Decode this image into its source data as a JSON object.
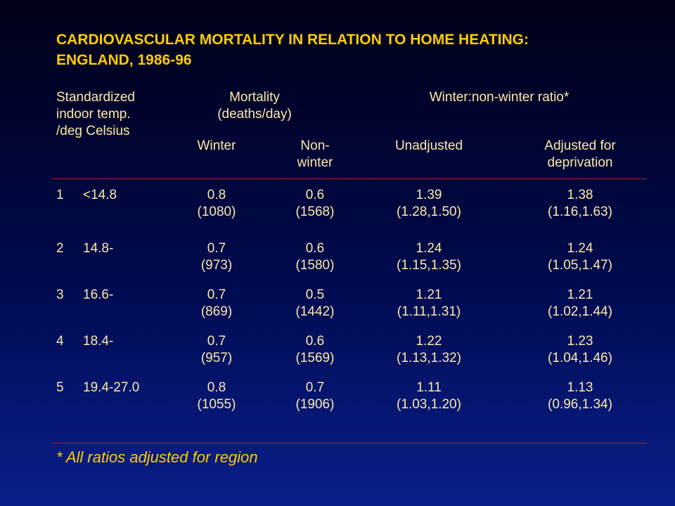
{
  "title": {
    "line1": "CARDIOVASCULAR MORTALITY IN RELATION TO HOME HEATING:",
    "line2": "ENGLAND, 1986-96"
  },
  "headers": {
    "temp": [
      "Standardized",
      "indoor temp.",
      "/deg Celsius"
    ],
    "mortality": [
      "Mortality",
      "(deaths/day)"
    ],
    "ratio": "Winter:non-winter ratio*",
    "winter": "Winter",
    "nonwinter": [
      "Non-",
      "winter"
    ],
    "unadjusted": "Unadjusted",
    "adjusted": [
      "Adjusted for",
      "deprivation"
    ]
  },
  "rows": [
    {
      "num": "1",
      "temp": "<14.8",
      "winter": [
        "0.8",
        "(1080)"
      ],
      "nonwinter": [
        "0.6",
        "(1568)"
      ],
      "unadj": [
        "1.39",
        "(1.28,1.50)"
      ],
      "adj": [
        "1.38",
        "(1.16,1.63)"
      ]
    },
    {
      "num": "2",
      "temp": "14.8-",
      "winter": [
        "0.7",
        "(973)"
      ],
      "nonwinter": [
        "0.6",
        "(1580)"
      ],
      "unadj": [
        "1.24",
        "(1.15,1.35)"
      ],
      "adj": [
        "1.24",
        "(1.05,1.47)"
      ]
    },
    {
      "num": "3",
      "temp": "16.6-",
      "winter": [
        "0.7",
        "(869)"
      ],
      "nonwinter": [
        "0.5",
        "(1442)"
      ],
      "unadj": [
        "1.21",
        "(1.11,1.31)"
      ],
      "adj": [
        "1.21",
        "(1.02,1.44)"
      ]
    },
    {
      "num": "4",
      "temp": "18.4-",
      "winter": [
        "0.7",
        "(957)"
      ],
      "nonwinter": [
        "0.6",
        "(1569)"
      ],
      "unadj": [
        "1.22",
        "(1.13,1.32)"
      ],
      "adj": [
        "1.23",
        "(1.04,1.46)"
      ]
    },
    {
      "num": "5",
      "temp": "19.4-27.0",
      "winter": [
        "0.8",
        "(1055)"
      ],
      "nonwinter": [
        "0.7",
        "(1906)"
      ],
      "unadj": [
        "1.11",
        "(1.03,1.20)"
      ],
      "adj": [
        "1.13",
        "(0.96,1.34)"
      ]
    }
  ],
  "footnote": "* All ratios adjusted for region",
  "colors": {
    "title": "#ffcc00",
    "text": "#fde9a6",
    "rule": "#b81e1e"
  }
}
